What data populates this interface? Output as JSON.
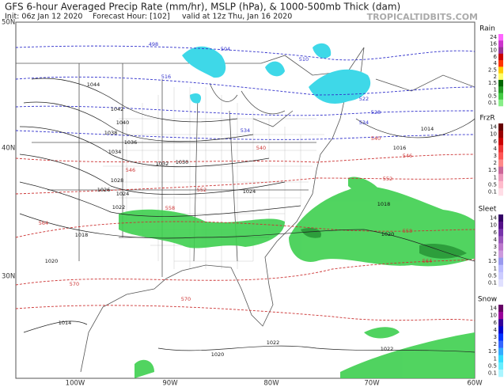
{
  "header": {
    "title": "GFS 6-hour Averaged Precip Rate (mm/hr), MSLP (hPa), & 1000-500mb Thick (dam)",
    "init": "Init: 06z Jan 12 2020",
    "forecast_hour": "Forecast Hour: [102]",
    "valid": "valid at 12z Thu, Jan 16 2020",
    "source": "TROPICALTIDBITS.COM"
  },
  "axes": {
    "lat_labels": [
      "50N",
      "40N",
      "30N"
    ],
    "lon_labels": [
      "100W",
      "90W",
      "80W",
      "70W",
      "60W"
    ]
  },
  "legend": [
    {
      "title": "Rain",
      "labels": [
        "24",
        "16",
        "10",
        "6",
        "4",
        "2.5",
        "2",
        "1.5",
        "1",
        "0.5",
        "0.1"
      ]
    },
    {
      "title": "FrzR",
      "labels": [
        "14",
        "10",
        "6",
        "4",
        "3",
        "2",
        "1.5",
        "1",
        "0.5",
        "0.1"
      ]
    },
    {
      "title": "Sleet",
      "labels": [
        "14",
        "10",
        "6",
        "4",
        "3",
        "2",
        "1.5",
        "1",
        "0.5",
        "0.1"
      ]
    },
    {
      "title": "Snow",
      "labels": [
        "14",
        "10",
        "6",
        "4",
        "3",
        "2",
        "1.5",
        "1",
        "0.5",
        "0.1"
      ]
    }
  ],
  "isobar_labels": [
    "1044",
    "1042",
    "1040",
    "1038",
    "1036",
    "1034",
    "1032",
    "1030",
    "1028",
    "1026",
    "1024",
    "1024",
    "1022",
    "1020",
    "1018",
    "1016",
    "1014",
    "1014",
    "1020",
    "1022",
    "1022",
    "1020",
    "1018"
  ],
  "thickness_labels": [
    "498",
    "504",
    "510",
    "516",
    "522",
    "528",
    "534",
    "540",
    "546",
    "552",
    "558",
    "564",
    "570",
    "570",
    "546",
    "552",
    "558",
    "564",
    "534",
    "540"
  ]
}
